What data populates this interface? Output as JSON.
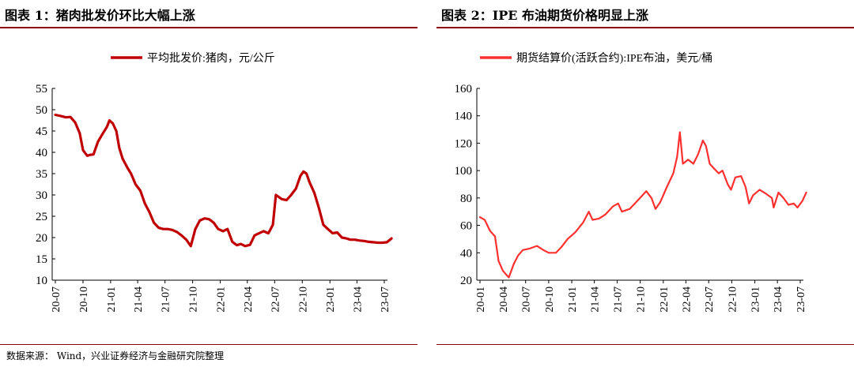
{
  "figures": [
    {
      "title": "图表 1：猪肉批发价环比大幅上涨",
      "chart_data": {
        "type": "line",
        "legend": "平均批发价:猪肉，元/公斤",
        "legend_position": "top-center",
        "color": "#c00000",
        "ylim": [
          10,
          55
        ],
        "yticks": [
          10,
          15,
          20,
          25,
          30,
          35,
          40,
          45,
          50,
          55
        ],
        "xticks": [
          "20-07",
          "20-10",
          "21-01",
          "21-04",
          "21-07",
          "21-10",
          "22-01",
          "22-04",
          "22-07",
          "22-10",
          "23-01",
          "23-04",
          "23-07"
        ],
        "grid": false,
        "x": [
          "2020-07-01",
          "2020-07-20",
          "2020-08-05",
          "2020-08-20",
          "2020-09-05",
          "2020-09-20",
          "2020-10-01",
          "2020-10-15",
          "2020-10-25",
          "2020-11-05",
          "2020-11-20",
          "2020-12-05",
          "2020-12-20",
          "2020-12-28",
          "2021-01-08",
          "2021-01-20",
          "2021-01-30",
          "2021-02-10",
          "2021-02-25",
          "2021-03-10",
          "2021-03-25",
          "2021-04-10",
          "2021-04-25",
          "2021-05-10",
          "2021-05-25",
          "2021-06-10",
          "2021-06-25",
          "2021-07-10",
          "2021-07-25",
          "2021-08-10",
          "2021-08-25",
          "2021-09-10",
          "2021-09-25",
          "2021-10-10",
          "2021-10-25",
          "2021-11-10",
          "2021-11-25",
          "2021-12-10",
          "2021-12-25",
          "2022-01-10",
          "2022-01-25",
          "2022-02-10",
          "2022-02-25",
          "2022-03-10",
          "2022-03-25",
          "2022-04-10",
          "2022-04-25",
          "2022-05-10",
          "2022-05-25",
          "2022-06-10",
          "2022-06-25",
          "2022-07-05",
          "2022-07-15",
          "2022-07-25",
          "2022-08-10",
          "2022-08-25",
          "2022-09-10",
          "2022-09-25",
          "2022-10-05",
          "2022-10-15",
          "2022-10-25",
          "2022-11-10",
          "2022-11-25",
          "2022-12-10",
          "2022-12-25",
          "2023-01-10",
          "2023-01-25",
          "2023-02-10",
          "2023-02-25",
          "2023-03-10",
          "2023-03-25",
          "2023-04-10",
          "2023-04-25",
          "2023-05-10",
          "2023-05-25",
          "2023-06-10",
          "2023-06-25",
          "2023-07-10",
          "2023-07-25"
        ],
        "y": [
          48.8,
          48.5,
          48.2,
          48.3,
          47.0,
          44.5,
          40.5,
          39.2,
          39.4,
          39.5,
          42.5,
          44.3,
          46.0,
          47.5,
          46.8,
          45.0,
          41.0,
          38.5,
          36.5,
          35.0,
          32.5,
          31.0,
          28.0,
          26.0,
          23.5,
          22.3,
          22.0,
          22.0,
          21.8,
          21.3,
          20.5,
          19.5,
          18.0,
          22.0,
          24.0,
          24.5,
          24.3,
          23.5,
          22.0,
          21.5,
          22.0,
          19.0,
          18.2,
          18.5,
          18.0,
          18.3,
          20.5,
          21.0,
          21.5,
          21.0,
          23.0,
          30.0,
          29.5,
          29.0,
          28.8,
          30.0,
          31.5,
          34.5,
          35.5,
          35.0,
          33.0,
          30.5,
          27.0,
          23.0,
          22.0,
          21.0,
          21.2,
          20.0,
          19.8,
          19.5,
          19.5,
          19.3,
          19.2,
          19.0,
          18.9,
          18.8,
          18.8,
          18.9,
          19.8
        ]
      }
    },
    {
      "title": "图表 2：IPE 布油期货价格明显上涨",
      "chart_data": {
        "type": "line",
        "legend": "期货结算价(活跃合约):IPE布油，美元/桶",
        "legend_position": "top-center",
        "color": "#ff3030",
        "ylim": [
          20,
          160
        ],
        "yticks": [
          20,
          40,
          60,
          80,
          100,
          120,
          140,
          160
        ],
        "xticks": [
          "20-01",
          "20-04",
          "20-07",
          "20-10",
          "21-01",
          "21-04",
          "21-07",
          "21-10",
          "22-01",
          "22-04",
          "22-07",
          "22-10",
          "23-01",
          "23-04",
          "23-07"
        ],
        "grid": false,
        "x": [
          "2020-01-01",
          "2020-01-20",
          "2020-02-10",
          "2020-03-01",
          "2020-03-15",
          "2020-04-01",
          "2020-04-15",
          "2020-04-25",
          "2020-05-15",
          "2020-06-01",
          "2020-06-20",
          "2020-07-15",
          "2020-08-15",
          "2020-09-10",
          "2020-10-01",
          "2020-10-30",
          "2020-11-20",
          "2020-12-15",
          "2021-01-15",
          "2021-02-15",
          "2021-03-10",
          "2021-03-25",
          "2021-04-20",
          "2021-05-15",
          "2021-06-15",
          "2021-07-05",
          "2021-07-20",
          "2021-08-20",
          "2021-09-20",
          "2021-10-25",
          "2021-11-15",
          "2021-12-01",
          "2021-12-20",
          "2022-01-15",
          "2022-02-10",
          "2022-02-25",
          "2022-03-08",
          "2022-03-20",
          "2022-04-10",
          "2022-05-01",
          "2022-05-20",
          "2022-06-08",
          "2022-06-20",
          "2022-07-05",
          "2022-07-20",
          "2022-08-10",
          "2022-08-25",
          "2022-09-15",
          "2022-09-28",
          "2022-10-15",
          "2022-11-07",
          "2022-11-25",
          "2022-12-09",
          "2022-12-25",
          "2023-01-20",
          "2023-02-15",
          "2023-03-10",
          "2023-03-17",
          "2023-04-05",
          "2023-04-25",
          "2023-05-15",
          "2023-06-05",
          "2023-06-20",
          "2023-07-10",
          "2023-07-25"
        ],
        "y": [
          66,
          64,
          56,
          52,
          34,
          27,
          24,
          22,
          32,
          38,
          42,
          43,
          45,
          42,
          40,
          40,
          44,
          50,
          55,
          62,
          70,
          64,
          65,
          68,
          74,
          76,
          70,
          72,
          78,
          85,
          80,
          72,
          77,
          88,
          98,
          110,
          128,
          105,
          108,
          105,
          112,
          122,
          118,
          105,
          102,
          98,
          100,
          90,
          86,
          95,
          96,
          88,
          76,
          82,
          86,
          83,
          80,
          73,
          84,
          80,
          75,
          76,
          73,
          78,
          84
        ]
      }
    }
  ],
  "source": "数据来源：  Wind，兴业证券经济与金融研究院整理"
}
